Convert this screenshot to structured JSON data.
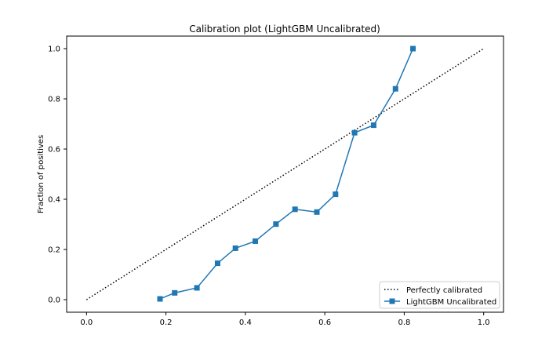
{
  "chart_data": {
    "type": "line",
    "title": "Calibration plot (LightGBM Uncalibrated)",
    "xlabel": "",
    "ylabel": "Fraction of positives",
    "xlim": [
      -0.05,
      1.05
    ],
    "ylim": [
      -0.05,
      1.05
    ],
    "xticks": [
      0.0,
      0.2,
      0.4,
      0.6,
      0.8,
      1.0
    ],
    "yticks": [
      0.0,
      0.2,
      0.4,
      0.6,
      0.8,
      1.0
    ],
    "xtick_labels": [
      "0.0",
      "0.2",
      "0.4",
      "0.6",
      "0.8",
      "1.0"
    ],
    "ytick_labels": [
      "0.0",
      "0.2",
      "0.4",
      "0.6",
      "0.8",
      "1.0"
    ],
    "grid": false,
    "legend_position": "lower-right",
    "series": [
      {
        "name": "Perfectly calibrated",
        "style": "dotted",
        "color": "#000000",
        "x": [
          0.0,
          1.0
        ],
        "y": [
          0.0,
          1.0
        ]
      },
      {
        "name": "LightGBM Uncalibrated",
        "style": "solid",
        "marker": "square",
        "color": "#1f77b4",
        "x": [
          0.185,
          0.222,
          0.278,
          0.33,
          0.375,
          0.425,
          0.477,
          0.525,
          0.58,
          0.627,
          0.675,
          0.723,
          0.778,
          0.822
        ],
        "y": [
          0.003,
          0.027,
          0.047,
          0.145,
          0.205,
          0.233,
          0.301,
          0.36,
          0.349,
          0.42,
          0.665,
          0.695,
          0.84,
          1.0
        ]
      }
    ]
  }
}
